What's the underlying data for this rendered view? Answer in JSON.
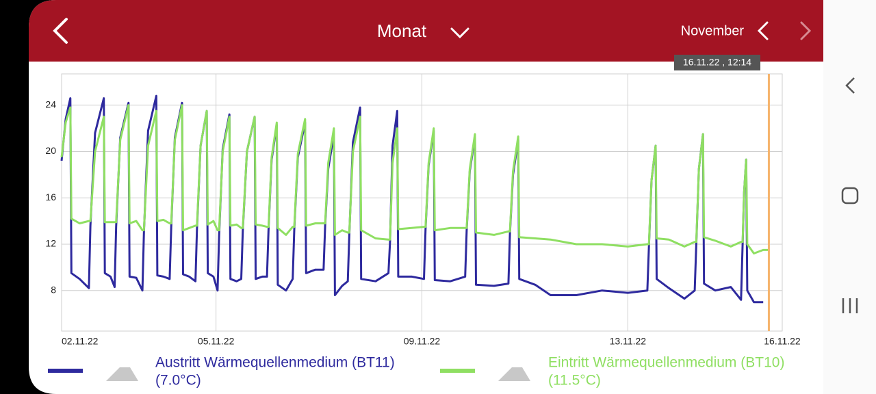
{
  "header": {
    "title": "Monat",
    "period": "November"
  },
  "tooltip": "16.11.22 , 12:14",
  "chart_data": {
    "type": "line",
    "x": [
      2.0,
      2.08,
      2.17,
      2.19,
      2.35,
      2.53,
      2.56,
      2.65,
      2.82,
      2.84,
      2.95,
      3.03,
      3.06,
      3.14,
      3.3,
      3.32,
      3.45,
      3.57,
      3.6,
      3.68,
      3.84,
      3.86,
      3.98,
      4.1,
      4.13,
      4.2,
      4.34,
      4.36,
      4.48,
      4.6,
      4.63,
      4.7,
      4.82,
      4.84,
      4.95,
      5.03,
      5.06,
      5.13,
      5.26,
      5.28,
      5.4,
      5.49,
      5.52,
      5.6,
      5.75,
      5.77,
      5.9,
      5.99,
      6.02,
      6.08,
      6.18,
      6.2,
      6.36,
      6.49,
      6.52,
      6.59,
      6.73,
      6.75,
      6.93,
      7.09,
      7.12,
      7.18,
      7.29,
      7.31,
      7.45,
      7.56,
      7.59,
      7.66,
      7.8,
      7.82,
      8.1,
      8.35,
      8.38,
      8.43,
      8.52,
      8.54,
      8.8,
      9.04,
      9.07,
      9.13,
      9.23,
      9.25,
      9.55,
      9.84,
      9.87,
      9.93,
      10.03,
      10.05,
      10.4,
      10.68,
      10.71,
      10.77,
      10.87,
      10.89,
      11.2,
      11.5,
      12.0,
      12.5,
      13.0,
      13.38,
      13.41,
      13.46,
      13.54,
      13.56,
      13.8,
      14.1,
      14.3,
      14.33,
      14.38,
      14.46,
      14.48,
      14.7,
      15.0,
      15.2,
      15.23,
      15.26,
      15.3,
      15.32,
      15.45,
      15.63,
      15.74
    ],
    "series": [
      {
        "name": "Austritt Wärmequellenmedium (BT11)",
        "current_label": "(7.0°C)",
        "color": "#2e2a9e",
        "values": [
          19.2,
          22.8,
          24.6,
          9.5,
          9.0,
          8.2,
          13.6,
          21.6,
          24.6,
          9.5,
          9.2,
          8.3,
          13.5,
          21.2,
          24.2,
          9.2,
          9.1,
          8.0,
          13.0,
          21.8,
          24.8,
          9.3,
          9.2,
          9.0,
          13.5,
          21.2,
          24.2,
          9.4,
          9.2,
          8.8,
          13.3,
          20.5,
          23.5,
          9.5,
          9.2,
          8.0,
          12.8,
          20.2,
          23.2,
          9.0,
          8.8,
          9.0,
          13.2,
          20,
          23,
          9.0,
          9.2,
          9.2,
          13.3,
          19.3,
          22.3,
          8.5,
          8.0,
          9.0,
          13.3,
          19.5,
          22.5,
          9.5,
          9.8,
          9.8,
          13.6,
          18.5,
          21.5,
          7.6,
          8.4,
          8.8,
          12.8,
          20.8,
          23.8,
          9.0,
          8.8,
          9.5,
          12.2,
          20.5,
          23.5,
          9.2,
          9.2,
          9.0,
          13.3,
          18.8,
          21.8,
          8.9,
          8.8,
          9.2,
          13.2,
          18.3,
          21.3,
          8.5,
          8.4,
          8.6,
          12.9,
          18,
          21,
          9.0,
          8.5,
          7.6,
          7.6,
          8.0,
          7.8,
          8.0,
          11.8,
          17.5,
          20.5,
          9.0,
          8.2,
          7.3,
          8.0,
          12.0,
          18.5,
          21.5,
          8.6,
          8.0,
          8.3,
          7.2,
          12.0,
          16.5,
          19.3,
          8.0,
          7.0,
          7.0,
          null
        ]
      },
      {
        "name": "Eintritt Wärmequellenmedium (BT10)",
        "current_label": "(11.5°C)",
        "color": "#8fdf62",
        "values": [
          19.5,
          22.5,
          23.8,
          14.2,
          13.8,
          14.0,
          14.0,
          20.0,
          23.0,
          13.9,
          13.9,
          13.9,
          13.9,
          21,
          24,
          13.8,
          14.0,
          13.2,
          13.2,
          20.5,
          23.5,
          14.0,
          14.1,
          13.8,
          13.8,
          21,
          24,
          13.2,
          13.4,
          13.6,
          13.6,
          20.5,
          23.5,
          13.7,
          14.0,
          13.2,
          13.2,
          20,
          23,
          13.6,
          13.7,
          13.4,
          13.4,
          20,
          23,
          13.7,
          13.6,
          13.5,
          13.5,
          19.5,
          22.5,
          13.4,
          12.8,
          13.5,
          13.5,
          19.8,
          22.8,
          13.6,
          13.8,
          13.8,
          13.8,
          19,
          22,
          12.8,
          13.2,
          13.0,
          13.0,
          20,
          23,
          13.2,
          12.5,
          12.4,
          12.4,
          19,
          22,
          13.3,
          13.4,
          13.5,
          13.5,
          19,
          22,
          13.2,
          13.4,
          13.4,
          13.4,
          18.5,
          21.5,
          13.0,
          12.8,
          13.1,
          13.1,
          18.3,
          21.3,
          12.6,
          12.5,
          12.4,
          12.0,
          12.0,
          11.8,
          12.0,
          12.0,
          17.5,
          20.5,
          12.5,
          12.4,
          11.8,
          12.2,
          12.2,
          18.5,
          21.5,
          12.6,
          12.3,
          11.8,
          12.2,
          12.2,
          16.5,
          19.3,
          12.0,
          11.2,
          11.5,
          11.5
        ]
      }
    ],
    "xlim": [
      2,
      16
    ],
    "xticks": [
      {
        "value": 2,
        "label": "02.11.22"
      },
      {
        "value": 5,
        "label": "05.11.22"
      },
      {
        "value": 9,
        "label": "09.11.22"
      },
      {
        "value": 13,
        "label": "13.11.22"
      },
      {
        "value": 16,
        "label": "16.11.22"
      }
    ],
    "ylim": [
      4.5,
      26.7
    ],
    "yticks": [
      8,
      12,
      16,
      20,
      24
    ],
    "grid": true,
    "cursor_x": 15.74,
    "cursor_color": "#f6b46c"
  }
}
